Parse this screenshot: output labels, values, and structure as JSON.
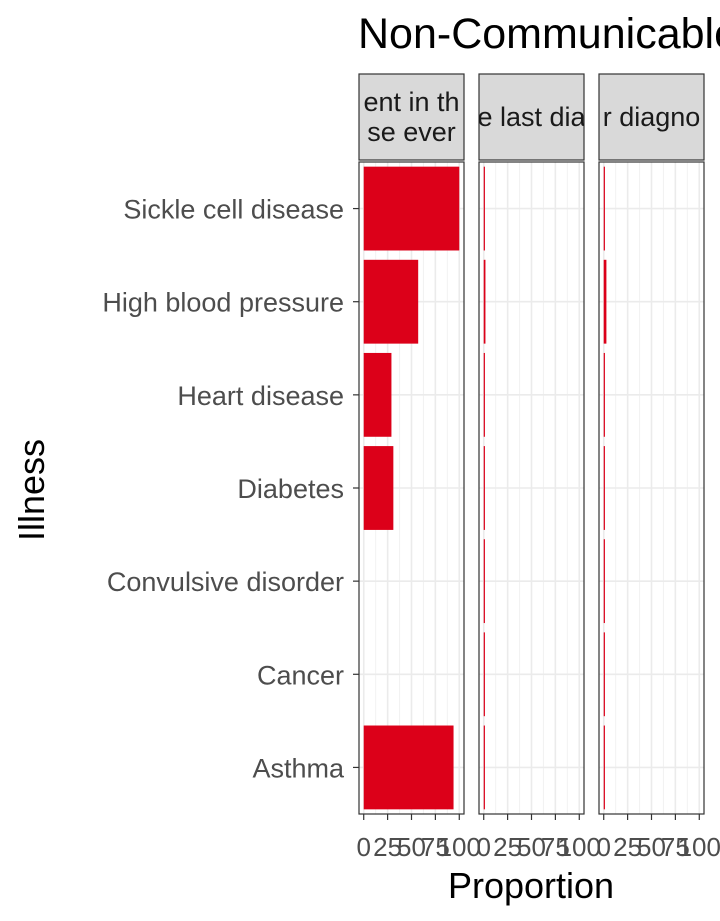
{
  "chart_data": {
    "type": "bar",
    "orientation": "horizontal",
    "title": "Non-Communicable",
    "xlabel": "Proportion",
    "ylabel": "Illness",
    "categories": [
      "Sickle cell disease",
      "High blood pressure",
      "Heart disease",
      "Diabetes",
      "Convulsive disorder",
      "Cancer",
      "Asthma"
    ],
    "xlim": [
      0,
      100
    ],
    "x_ticks": [
      "0",
      "25",
      "50",
      "75",
      "100"
    ],
    "grid": true,
    "bar_color": "#dc0019",
    "facets": [
      {
        "label_lines": [
          "ent in th",
          "se ever"
        ],
        "values": [
          100,
          57,
          29,
          31,
          0,
          0,
          94
        ]
      },
      {
        "label_lines": [
          "n the last diagno"
        ],
        "values": [
          0.8,
          1.8,
          0.8,
          0.4,
          0.4,
          0.4,
          1.2
        ]
      },
      {
        "label_lines": [
          "r diagno"
        ],
        "values": [
          1.2,
          2.8,
          1.2,
          0.8,
          1.2,
          0.4,
          1.2
        ]
      }
    ]
  }
}
